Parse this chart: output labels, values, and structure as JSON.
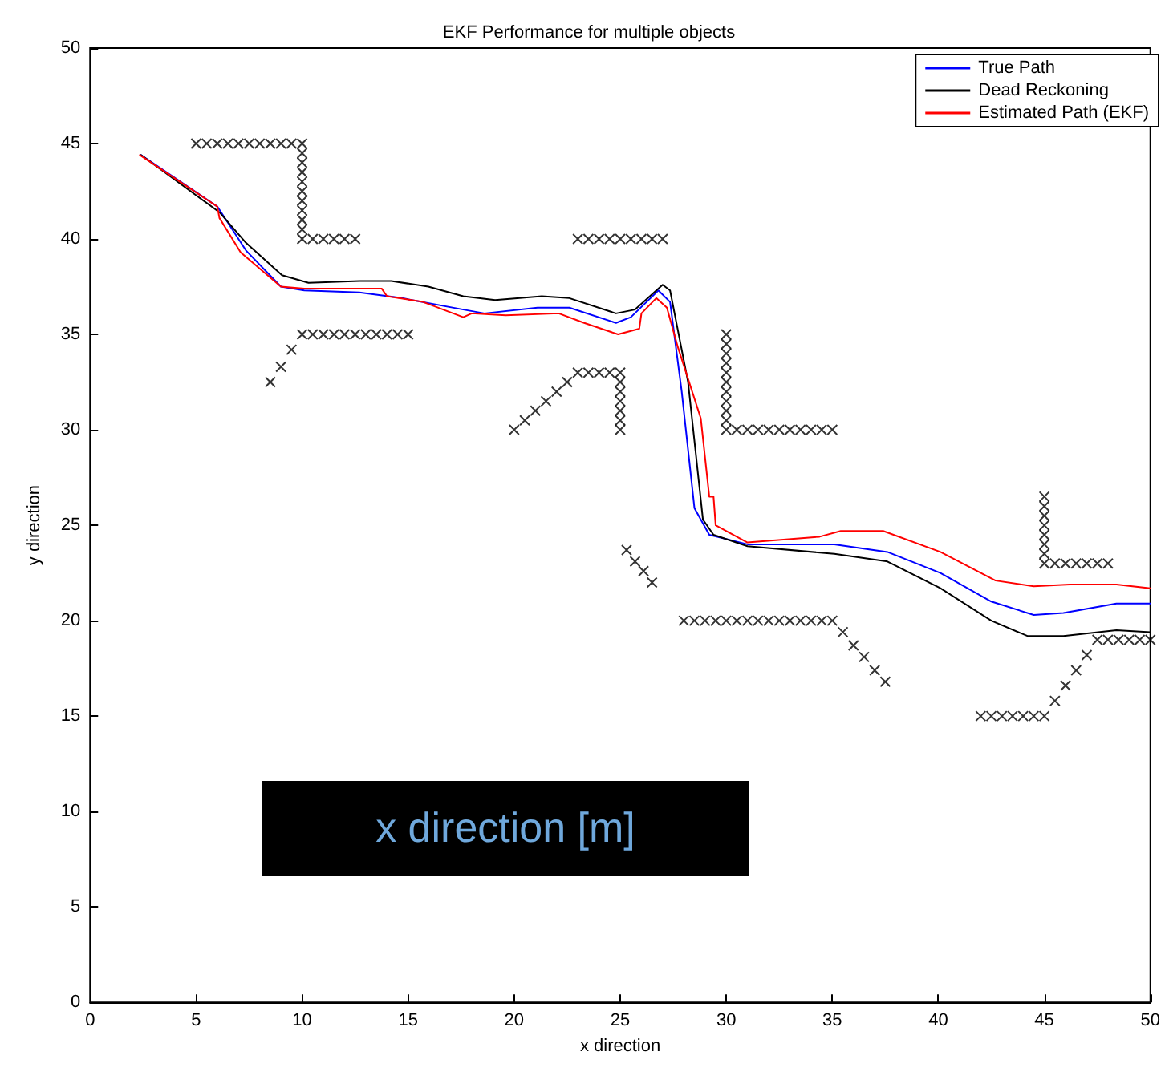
{
  "chart_data": {
    "type": "line",
    "title": "EKF Performance for multiple objects",
    "xlabel": "x direction",
    "ylabel": "y direction",
    "xlim": [
      0,
      50
    ],
    "ylim": [
      0,
      50
    ],
    "xticks": [
      0,
      5,
      10,
      15,
      20,
      25,
      30,
      35,
      40,
      45,
      50
    ],
    "yticks": [
      0,
      5,
      10,
      15,
      20,
      25,
      30,
      35,
      40,
      45,
      50
    ],
    "grid": false,
    "legend": "top right",
    "annotations": [
      "x direction [m]"
    ],
    "series": [
      {
        "name": "True Path",
        "color": "#0000ff",
        "x": [
          2.4,
          6.0,
          7.35,
          9.0,
          10.1,
          12.7,
          14.7,
          17.6,
          18.6,
          21.1,
          22.6,
          24.8,
          25.5,
          26.8,
          27.35,
          27.9,
          28.5,
          29.2,
          31.0,
          35.1,
          37.6,
          40.1,
          42.5,
          44.5,
          45.9,
          48.4,
          50
        ],
        "values": [
          44.4,
          41.7,
          39.4,
          37.5,
          37.3,
          37.2,
          36.9,
          36.3,
          36.1,
          36.4,
          36.4,
          35.6,
          35.9,
          37.3,
          36.7,
          32.0,
          25.9,
          24.5,
          24.0,
          24.0,
          23.6,
          22.5,
          21.0,
          20.3,
          20.4,
          20.9,
          20.9
        ]
      },
      {
        "name": "Dead Reckoning",
        "color": "#000000",
        "x": [
          2.4,
          6.1,
          7.35,
          9.05,
          10.3,
          12.7,
          14.2,
          15.95,
          17.6,
          19.1,
          21.3,
          22.6,
          24.8,
          25.7,
          27.0,
          27.35,
          28.2,
          28.9,
          29.4,
          31.0,
          35.1,
          37.6,
          40.1,
          42.5,
          44.2,
          45.9,
          48.4,
          50
        ],
        "values": [
          44.4,
          41.4,
          39.8,
          38.1,
          37.7,
          37.8,
          37.8,
          37.5,
          37.0,
          36.8,
          37.0,
          36.9,
          36.1,
          36.3,
          37.6,
          37.3,
          32.5,
          25.3,
          24.5,
          23.9,
          23.5,
          23.1,
          21.7,
          20.0,
          19.2,
          19.2,
          19.5,
          19.4
        ]
      },
      {
        "name": "Estimated Path (EKF)",
        "color": "#ff0000",
        "x": [
          2.35,
          6.0,
          6.1,
          7.1,
          9.0,
          10.1,
          12.7,
          13.75,
          14.0,
          15.7,
          17.6,
          18.0,
          19.6,
          22.1,
          23.3,
          24.9,
          25.9,
          26.0,
          26.7,
          27.2,
          27.7,
          28.8,
          29.2,
          29.4,
          29.5,
          31.0,
          34.4,
          35.4,
          37.4,
          40.1,
          42.7,
          44.5,
          46.2,
          48.4,
          50
        ],
        "values": [
          44.4,
          41.7,
          41.1,
          39.3,
          37.5,
          37.4,
          37.4,
          37.4,
          37.0,
          36.7,
          35.9,
          36.1,
          36.0,
          36.1,
          35.6,
          35.0,
          35.3,
          36.1,
          36.9,
          36.4,
          34.4,
          30.6,
          26.5,
          26.5,
          25.0,
          24.1,
          24.4,
          24.7,
          24.7,
          23.6,
          22.1,
          21.8,
          21.9,
          21.9,
          21.7
        ]
      },
      {
        "type": "scatter",
        "color": "#000000",
        "marker": "cross",
        "x": [
          5,
          5.5,
          6,
          6.5,
          7,
          7.5,
          8,
          8.5,
          9,
          9.5,
          10,
          10,
          10,
          10,
          10,
          10,
          10,
          10,
          10,
          10,
          10,
          10.5,
          11,
          11.5,
          12,
          12.5,
          8.5,
          9,
          9.5,
          10,
          10.5,
          11,
          11.5,
          12,
          12.5,
          13,
          13.5,
          14,
          14.5,
          15,
          23,
          23.5,
          24,
          24.5,
          25,
          25.5,
          26,
          26.5,
          27,
          20,
          20.5,
          21,
          21.5,
          22,
          22.5,
          23,
          23.5,
          24,
          24.5,
          25,
          25,
          25,
          25,
          25,
          25,
          25,
          25.3,
          25.7,
          26.1,
          26.5,
          30,
          30,
          30,
          30,
          30,
          30,
          30,
          30,
          30,
          30,
          30,
          30.5,
          31,
          31.5,
          32,
          32.5,
          33,
          33.5,
          34,
          34.5,
          35,
          28,
          28.5,
          29,
          29.5,
          30,
          30.5,
          31,
          31.5,
          32,
          32.5,
          33,
          33.5,
          34,
          34.5,
          35,
          35.5,
          36,
          36.5,
          37,
          37.5,
          42,
          42.5,
          43,
          43.5,
          44,
          44.5,
          45,
          45.5,
          46,
          46.5,
          47,
          47.5,
          48,
          48.5,
          49,
          49.5,
          50,
          45,
          45,
          45,
          45,
          45,
          45,
          45,
          45,
          45.5,
          46,
          46.5,
          47,
          47.5,
          48
        ],
        "values": [
          45,
          45,
          45,
          45,
          45,
          45,
          45,
          45,
          45,
          45,
          45,
          44.5,
          44,
          43.5,
          43,
          42.5,
          42,
          41.5,
          41,
          40.5,
          40,
          40,
          40,
          40,
          40,
          40,
          32.5,
          33.3,
          34.2,
          35,
          35,
          35,
          35,
          35,
          35,
          35,
          35,
          35,
          35,
          35,
          40,
          40,
          40,
          40,
          40,
          40,
          40,
          40,
          40,
          30,
          30.5,
          31,
          31.5,
          32,
          32.5,
          33,
          33,
          33,
          33,
          33,
          32.5,
          32,
          31.5,
          31,
          30.5,
          30,
          23.7,
          23.1,
          22.6,
          22,
          35,
          34.5,
          34,
          33.5,
          33,
          32.5,
          32,
          31.5,
          31,
          30.5,
          30,
          30,
          30,
          30,
          30,
          30,
          30,
          30,
          30,
          30,
          30,
          20,
          20,
          20,
          20,
          20,
          20,
          20,
          20,
          20,
          20,
          20,
          20,
          20,
          20,
          20,
          19.4,
          18.7,
          18.1,
          17.4,
          16.8,
          15,
          15,
          15,
          15,
          15,
          15,
          15,
          15.8,
          16.6,
          17.4,
          18.2,
          19,
          19,
          19,
          19,
          19,
          19,
          26.5,
          26,
          25.5,
          25,
          24.5,
          24,
          23.5,
          23,
          23,
          23,
          23,
          23,
          23,
          23
        ]
      }
    ]
  }
}
